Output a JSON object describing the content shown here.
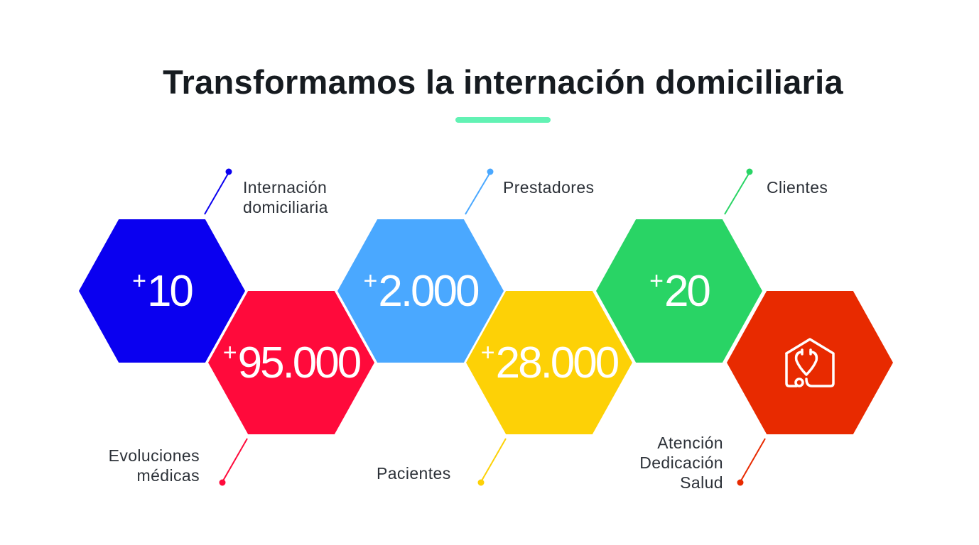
{
  "title": "Transformamos la internación domiciliaria",
  "accent_color": "#62f2b4",
  "stats": [
    {
      "plus": "+",
      "value": "10",
      "label": [
        "Internación",
        "domiciliaria"
      ],
      "color": "#0a00f0"
    },
    {
      "plus": "+",
      "value": "95.000",
      "label": [
        "Evoluciones",
        "médicas"
      ],
      "color": "#ff0a3b"
    },
    {
      "plus": "+",
      "value": "2.000",
      "label": [
        "Prestadores"
      ],
      "color": "#4aa8ff"
    },
    {
      "plus": "+",
      "value": "28.000",
      "label": [
        "Pacientes"
      ],
      "color": "#fdd106"
    },
    {
      "plus": "+",
      "value": "20",
      "label": [
        "Clientes"
      ],
      "color": "#29d465"
    },
    {
      "icon": "house-stethoscope-icon",
      "label": [
        "Atención",
        "Dedicación",
        "Salud"
      ],
      "color": "#e82a00"
    }
  ]
}
